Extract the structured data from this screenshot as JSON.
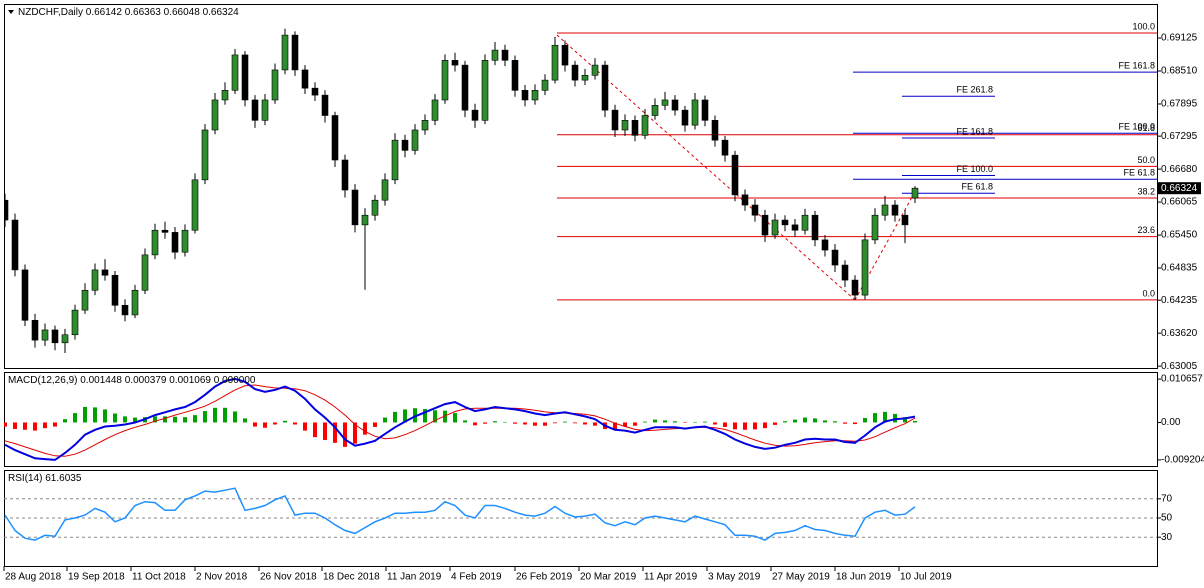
{
  "chart_data": [
    {
      "type": "candlestick",
      "title": "NZDCHF,Daily",
      "open": [
        0.661,
        0.6573,
        0.648,
        0.6386,
        0.6349,
        0.6368,
        0.6344,
        0.6359,
        0.6405,
        0.6442,
        0.648,
        0.647,
        0.6414,
        0.6396,
        0.6442,
        0.6508,
        0.6554,
        0.655,
        0.6513,
        0.6554,
        0.6648,
        0.6741,
        0.6797,
        0.6815,
        0.6881,
        0.6797,
        0.6759,
        0.6797,
        0.6853,
        0.6918,
        0.6853,
        0.6819,
        0.6806,
        0.6768,
        0.6685,
        0.6629,
        0.6564,
        0.6582,
        0.661,
        0.6648,
        0.6722,
        0.6703,
        0.6741,
        0.6759,
        0.6797,
        0.6871,
        0.6862,
        0.6778,
        0.6759,
        0.6871,
        0.689,
        0.6871,
        0.6815,
        0.6797,
        0.6815,
        0.6834,
        0.6899,
        0.6862,
        0.6834,
        0.6843,
        0.6862,
        0.6778,
        0.6741,
        0.6759,
        0.6731,
        0.6768,
        0.6787,
        0.6797,
        0.6778,
        0.675,
        0.6797,
        0.6759,
        0.6722,
        0.6694,
        0.662,
        0.6601,
        0.6582,
        0.6545,
        0.6573,
        0.6564,
        0.6554,
        0.6582,
        0.6536,
        0.6517,
        0.6489,
        0.6461,
        0.6433,
        0.6536,
        0.6582,
        0.6601,
        0.6582,
        0.66142
      ],
      "high": [
        0.6622,
        0.6585,
        0.649,
        0.6398,
        0.638,
        0.6376,
        0.637,
        0.6415,
        0.6455,
        0.6492,
        0.65,
        0.6478,
        0.6425,
        0.6452,
        0.652,
        0.6566,
        0.657,
        0.656,
        0.6565,
        0.666,
        0.6752,
        0.681,
        0.683,
        0.6892,
        0.6888,
        0.6806,
        0.6808,
        0.6865,
        0.693,
        0.6925,
        0.6862,
        0.683,
        0.6815,
        0.6775,
        0.6695,
        0.664,
        0.6595,
        0.662,
        0.666,
        0.6735,
        0.6732,
        0.6752,
        0.677,
        0.6808,
        0.6882,
        0.6885,
        0.687,
        0.679,
        0.6882,
        0.6905,
        0.69,
        0.688,
        0.6825,
        0.6826,
        0.6845,
        0.6915,
        0.6908,
        0.687,
        0.6855,
        0.6875,
        0.687,
        0.6788,
        0.677,
        0.6768,
        0.678,
        0.68,
        0.6812,
        0.6806,
        0.6786,
        0.681,
        0.6805,
        0.6768,
        0.673,
        0.6702,
        0.663,
        0.6612,
        0.6592,
        0.6585,
        0.6582,
        0.6575,
        0.6594,
        0.659,
        0.6545,
        0.6528,
        0.6498,
        0.647,
        0.6548,
        0.6595,
        0.6618,
        0.661,
        0.6592,
        0.66363
      ],
      "low": [
        0.656,
        0.6468,
        0.6375,
        0.6335,
        0.6338,
        0.633,
        0.6325,
        0.635,
        0.6398,
        0.6433,
        0.646,
        0.6402,
        0.6384,
        0.639,
        0.6435,
        0.65,
        0.6538,
        0.65,
        0.6505,
        0.6548,
        0.664,
        0.6733,
        0.6788,
        0.6808,
        0.6785,
        0.6745,
        0.675,
        0.679,
        0.6845,
        0.6842,
        0.6808,
        0.6795,
        0.6755,
        0.6672,
        0.6615,
        0.655,
        0.6443,
        0.6572,
        0.66,
        0.664,
        0.669,
        0.6695,
        0.6732,
        0.675,
        0.679,
        0.685,
        0.6765,
        0.6745,
        0.6752,
        0.6862,
        0.686,
        0.6803,
        0.6785,
        0.6788,
        0.6806,
        0.6828,
        0.685,
        0.6822,
        0.6825,
        0.6835,
        0.6765,
        0.6728,
        0.673,
        0.672,
        0.6724,
        0.676,
        0.6778,
        0.6768,
        0.6738,
        0.6742,
        0.6748,
        0.671,
        0.6682,
        0.6608,
        0.659,
        0.657,
        0.6532,
        0.6538,
        0.6552,
        0.6542,
        0.6546,
        0.6524,
        0.6505,
        0.6476,
        0.6448,
        0.6424,
        0.6425,
        0.6528,
        0.6572,
        0.657,
        0.653,
        0.66048
      ],
      "close": [
        0.6573,
        0.648,
        0.6386,
        0.6349,
        0.6368,
        0.6344,
        0.6359,
        0.6405,
        0.6442,
        0.648,
        0.647,
        0.6414,
        0.6396,
        0.6442,
        0.6508,
        0.6554,
        0.655,
        0.6513,
        0.6554,
        0.6648,
        0.6741,
        0.6797,
        0.6815,
        0.6881,
        0.6797,
        0.6759,
        0.6797,
        0.6853,
        0.6918,
        0.6853,
        0.6819,
        0.6806,
        0.6768,
        0.6685,
        0.6629,
        0.6564,
        0.6582,
        0.661,
        0.6648,
        0.6722,
        0.6703,
        0.6741,
        0.6759,
        0.6797,
        0.6871,
        0.6862,
        0.6778,
        0.6759,
        0.6871,
        0.689,
        0.6871,
        0.6815,
        0.6797,
        0.6815,
        0.6834,
        0.6899,
        0.6862,
        0.6834,
        0.6843,
        0.6862,
        0.6778,
        0.6741,
        0.6759,
        0.6731,
        0.6768,
        0.6787,
        0.6797,
        0.6778,
        0.675,
        0.6797,
        0.6759,
        0.6722,
        0.6694,
        0.662,
        0.6601,
        0.6582,
        0.6545,
        0.6573,
        0.6564,
        0.6554,
        0.6582,
        0.6536,
        0.6517,
        0.6489,
        0.6461,
        0.6433,
        0.6536,
        0.6582,
        0.6601,
        0.6582,
        0.6564,
        0.66324
      ],
      "up_color": "#2e8b2e",
      "down_color": "#000000",
      "xlim": [
        -0.1,
        115.2
      ],
      "xticks": [
        {
          "value": -0.1,
          "label": "28 Aug 2018"
        },
        {
          "value": 6.2,
          "label": "19 Sep 2018"
        },
        {
          "value": 12.6,
          "label": "11 Oct 2018"
        },
        {
          "value": 19,
          "label": "2 Nov 2018"
        },
        {
          "value": 25.4,
          "label": "26 Nov 2018"
        },
        {
          "value": 31.7,
          "label": "18 Dec 2018"
        },
        {
          "value": 38.1,
          "label": "11 Jan 2019"
        },
        {
          "value": 44.5,
          "label": "4 Feb 2019"
        },
        {
          "value": 51,
          "label": "26 Feb 2019"
        },
        {
          "value": 57.4,
          "label": "20 Mar 2019"
        },
        {
          "value": 63.8,
          "label": "11 Apr 2019"
        },
        {
          "value": 70.2,
          "label": "3 May 2019"
        },
        {
          "value": 76.6,
          "label": "27 May 2019"
        },
        {
          "value": 83,
          "label": "18 Jun 2019"
        },
        {
          "value": 89.4,
          "label": "10 Jul 2019"
        }
      ],
      "ylim": [
        0.6297,
        0.6976
      ],
      "yticks": [
        0.69125,
        {
          "value": 0.6851,
          "label": "0.68510"
        },
        0.67895,
        0.67295,
        {
          "value": 0.6668,
          "label": "0.66680"
        },
        0.66065,
        {
          "value": 0.6545,
          "label": "0.65450"
        },
        0.64835,
        0.64235,
        {
          "value": 0.6362,
          "label": "0.63620"
        },
        0.63005
      ],
      "fibo_retracement": {
        "color": "#e00000",
        "x_start": 55.2,
        "x_end": 115.2,
        "levels": [
          {
            "label": "100.0",
            "price": 0.6922
          },
          {
            "label": "61.8",
            "price": 0.6732
          },
          {
            "label": "50.0",
            "price": 0.6673
          },
          {
            "label": "38.2",
            "price": 0.6614
          },
          {
            "label": "23.6",
            "price": 0.6542
          },
          {
            "label": "0.0",
            "price": 0.6424
          }
        ]
      },
      "fibo_expansions": [
        {
          "color": "#0000c8",
          "x_start": 84.8,
          "x_end": 115.2,
          "levels": [
            {
              "label": "FE 161.8",
              "price": 0.6849
            },
            {
              "label": "FE 100.0",
              "price": 0.6735
            },
            {
              "label": "FE 61.8",
              "price": 0.6649
            }
          ]
        },
        {
          "color": "#0000c8",
          "x_start": 89.7,
          "x_end": 99,
          "levels": [
            {
              "label": "FE 261.8",
              "price": 0.6804
            },
            {
              "label": "FE 161.8",
              "price": 0.6726
            },
            {
              "label": "FE 100.0",
              "price": 0.6656
            },
            {
              "label": "FE 61.8",
              "price": 0.6623
            }
          ]
        }
      ]
    },
    {
      "type": "macd",
      "title": "MACD(12,26,9)",
      "main": [
        -0.0055,
        -0.0068,
        -0.0078,
        -0.0088,
        -0.009,
        -0.0092,
        -0.0075,
        -0.0055,
        -0.003,
        -0.0018,
        -0.001,
        -0.0008,
        -0.0005,
        0,
        0.0008,
        0.0018,
        0.0025,
        0.0032,
        0.0038,
        0.005,
        0.0068,
        0.0088,
        0.0102,
        0.0107,
        0.01,
        0.0082,
        0.0075,
        0.008,
        0.0088,
        0.0078,
        0.0058,
        0.0032,
        0.0012,
        -0.0012,
        -0.0042,
        -0.0057,
        -0.0052,
        -0.0045,
        -0.0028,
        -0.0012,
        0.0002,
        0.0015,
        0.0025,
        0.0035,
        0.0045,
        0.005,
        0.0038,
        0.0028,
        0.0032,
        0.0038,
        0.0035,
        0.0032,
        0.0028,
        0.0022,
        0.0018,
        0.0022,
        0.0025,
        0.002,
        0.0015,
        0.0008,
        -0.0008,
        -0.0018,
        -0.002,
        -0.0025,
        -0.0018,
        -0.0012,
        -0.0012,
        -0.0012,
        -0.0015,
        -0.0012,
        -0.001,
        -0.0018,
        -0.0028,
        -0.0042,
        -0.0052,
        -0.006,
        -0.0065,
        -0.0062,
        -0.0055,
        -0.005,
        -0.0042,
        -0.004,
        -0.0042,
        -0.0042,
        -0.0048,
        -0.005,
        -0.0032,
        -0.0012,
        0.0002,
        0.0008,
        0.001,
        0.001448
      ],
      "signal": [
        -0.0045,
        -0.0052,
        -0.006,
        -0.0068,
        -0.0076,
        -0.0082,
        -0.0083,
        -0.0078,
        -0.0068,
        -0.0055,
        -0.0042,
        -0.003,
        -0.002,
        -0.0012,
        -0.0005,
        0.0003,
        0.001,
        0.0018,
        0.0025,
        0.0032,
        0.004,
        0.0052,
        0.0066,
        0.008,
        0.009,
        0.0092,
        0.0088,
        0.0085,
        0.0084,
        0.0083,
        0.0078,
        0.0068,
        0.0055,
        0.0038,
        0.0018,
        -0.0005,
        -0.0022,
        -0.0034,
        -0.004,
        -0.0038,
        -0.003,
        -0.002,
        -0.0008,
        0.0005,
        0.0016,
        0.0027,
        0.0033,
        0.0035,
        0.0035,
        0.0035,
        0.0035,
        0.0035,
        0.0033,
        0.003,
        0.0026,
        0.0024,
        0.0023,
        0.0022,
        0.002,
        0.0016,
        0.0008,
        -0.0002,
        -0.001,
        -0.0017,
        -0.002,
        -0.0019,
        -0.0017,
        -0.0015,
        -0.0014,
        -0.0013,
        -0.0012,
        -0.0013,
        -0.0017,
        -0.0025,
        -0.0034,
        -0.0043,
        -0.0051,
        -0.0056,
        -0.0058,
        -0.0057,
        -0.0054,
        -0.005,
        -0.0047,
        -0.0045,
        -0.0045,
        -0.0046,
        -0.0043,
        -0.0035,
        -0.0024,
        -0.0013,
        -0.0003,
        0.001069
      ],
      "histogram": [
        -0.001,
        -0.0016,
        -0.0018,
        -0.002,
        -0.0014,
        -0.001,
        0.0008,
        0.0023,
        0.0038,
        0.0037,
        0.0032,
        0.0022,
        0.0015,
        0.0012,
        0.0013,
        0.0015,
        0.0015,
        0.0014,
        0.0013,
        0.0018,
        0.0028,
        0.0036,
        0.0036,
        0.0027,
        0.001,
        -0.001,
        -0.0013,
        -0.0005,
        0.0004,
        -0.0005,
        -0.002,
        -0.0036,
        -0.0043,
        -0.005,
        -0.006,
        -0.0052,
        -0.003,
        -0.0011,
        0.0012,
        0.0026,
        0.0032,
        0.0035,
        0.0033,
        0.003,
        0.0029,
        0.0023,
        0.0005,
        -0.0007,
        -0.0003,
        0.0003,
        0,
        -0.0003,
        -0.0005,
        -0.0008,
        -0.0008,
        -0.0002,
        0.0002,
        -0.0002,
        -0.0005,
        -0.0008,
        -0.0016,
        -0.0016,
        -0.001,
        -0.0008,
        0.0002,
        0.0007,
        0.0005,
        0.0003,
        -0.0001,
        0.0001,
        0.0002,
        -0.0005,
        -0.0011,
        -0.0017,
        -0.0018,
        -0.0017,
        -0.0014,
        -0.0006,
        0.0003,
        0.0007,
        0.0012,
        0.001,
        0.0005,
        0.0003,
        -0.0003,
        -0.0004,
        0.0011,
        0.0023,
        0.0026,
        0.0021,
        0.0013,
        0.000379
      ],
      "extra_buffer": {
        "value": 0,
        "label": "0.000000"
      },
      "main_color": "#0000e0",
      "signal_color": "#e00000",
      "up_color": "#00a000",
      "down_color": "#ff0000",
      "ylim": [
        -0.0107,
        0.0124
      ],
      "yticks": [
        0.010657,
        {
          "value": 0,
          "label": "0.00"
        },
        -0.009204
      ]
    },
    {
      "type": "line",
      "title": "RSI(14)",
      "values": [
        53,
        37,
        29,
        27,
        32,
        31,
        48,
        50,
        53,
        60,
        56,
        46,
        50,
        63,
        67,
        66,
        58,
        58,
        69,
        73,
        78,
        77,
        79,
        81,
        58,
        60,
        63,
        69,
        73,
        53,
        55,
        55,
        50,
        43,
        37,
        34,
        40,
        46,
        50,
        55,
        55,
        56,
        56,
        58,
        67,
        63,
        53,
        50,
        63,
        63,
        60,
        56,
        53,
        52,
        55,
        62,
        55,
        51,
        52,
        54,
        45,
        42,
        46,
        43,
        50,
        52,
        50,
        48,
        46,
        52,
        49,
        46,
        43,
        32,
        32,
        31,
        27,
        34,
        35,
        37,
        42,
        38,
        37,
        34,
        32,
        31,
        50,
        56,
        58,
        53,
        54,
        61.6035
      ],
      "color": "#1e90ff",
      "ylim": [
        0,
        100
      ],
      "yticks": [
        30,
        50,
        70
      ]
    }
  ]
}
